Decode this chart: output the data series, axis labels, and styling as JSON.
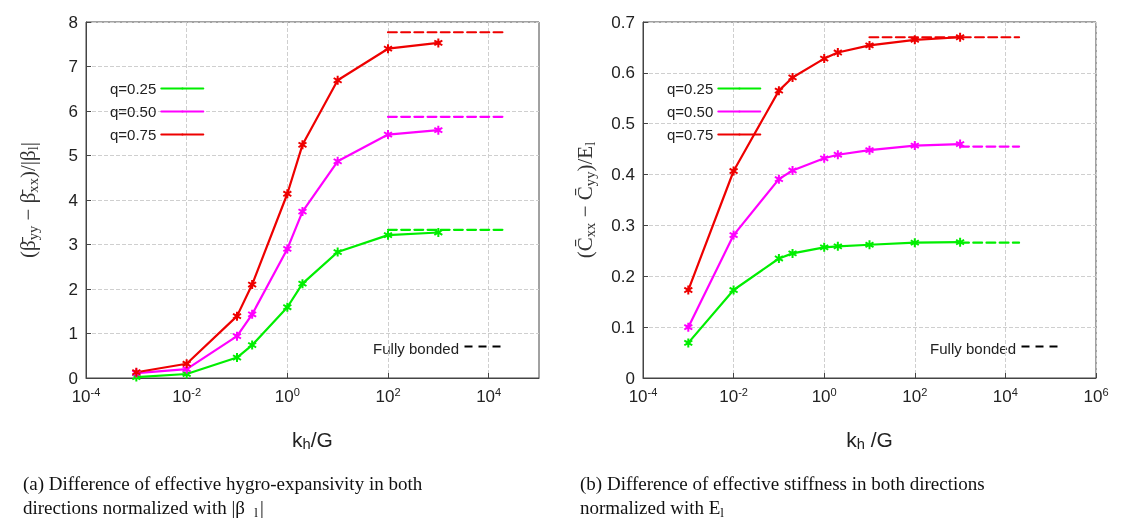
{
  "chart_data": [
    {
      "type": "line",
      "title": "(a) Difference of effective hygro-expansivity in both directions normalized with |β$_{l}$|",
      "xlabel": "k$_{h}$/G",
      "ylabel": "(β̄$_{yy}$ − β̄$_{xx}$)/|β$_{l}$|",
      "log": "x",
      "xlim": [
        0.0001,
        100000
      ],
      "xticks": [
        {
          "value": 0.0001,
          "label": "10$^{-4}$"
        },
        {
          "value": 0.01,
          "label": "10$^{-2}$"
        },
        {
          "value": 1,
          "label": "10$^{0}$"
        },
        {
          "value": 100,
          "label": "10$^{2}$"
        },
        {
          "value": 10000,
          "label": "10$^{4}$"
        }
      ],
      "ylim": [
        0,
        8
      ],
      "yticks": [
        0,
        1,
        2,
        3,
        4,
        5,
        6,
        7,
        8
      ],
      "grid": true,
      "legend": "top left",
      "marker": "star",
      "line_style": "solid",
      "series": [
        {
          "name": "q=0.25",
          "color": "#00ee00",
          "x": [
            0.001,
            0.01,
            0.1,
            0.2,
            1,
            2,
            10,
            100,
            1000
          ],
          "values": [
            0.02,
            0.09,
            0.46,
            0.74,
            1.59,
            2.12,
            2.83,
            3.21,
            3.27
          ]
        },
        {
          "name": "q=0.50",
          "color": "#ff00ff",
          "x": [
            0.001,
            0.01,
            0.1,
            0.2,
            1,
            2,
            10,
            100,
            1000
          ],
          "values": [
            0.11,
            0.2,
            0.94,
            1.43,
            2.9,
            3.74,
            4.87,
            5.47,
            5.57
          ]
        },
        {
          "name": "q=0.75",
          "color": "#ee0000",
          "x": [
            0.001,
            0.01,
            0.1,
            0.2,
            1,
            2,
            10,
            100,
            1000
          ],
          "values": [
            0.13,
            0.32,
            1.39,
            2.1,
            4.14,
            5.24,
            6.69,
            7.4,
            7.53
          ]
        },
        {
          "color": "#00ee00",
          "x": [
            100,
            20000
          ],
          "values": [
            3.33,
            3.33
          ],
          "line_style": "dashed",
          "marker": "none"
        },
        {
          "color": "#ff00ff",
          "x": [
            100,
            20000
          ],
          "values": [
            5.87,
            5.87
          ],
          "line_style": "dashed",
          "marker": "none"
        },
        {
          "color": "#ee0000",
          "x": [
            100,
            20000
          ],
          "values": [
            7.77,
            7.77
          ],
          "line_style": "dashed",
          "marker": "none"
        }
      ],
      "annotations": [
        "Fully bonded"
      ]
    },
    {
      "type": "line",
      "title": "(b) Difference of effective stiffness in both directions normalized with E$_{l}$",
      "xlabel": "k$_{h}$ /G",
      "ylabel": "(C̄$_{xx}$ − C̄$_{yy}$)/E$_{l}$",
      "log": "x",
      "xlim": [
        0.0001,
        1000000
      ],
      "xticks": [
        {
          "value": 0.0001,
          "label": "10$^{-4}$"
        },
        {
          "value": 0.01,
          "label": "10$^{-2}$"
        },
        {
          "value": 1,
          "label": "10$^{0}$"
        },
        {
          "value": 100,
          "label": "10$^{2}$"
        },
        {
          "value": 10000,
          "label": "10$^{4}$"
        },
        {
          "value": 1000000,
          "label": "10$^{6}$"
        }
      ],
      "ylim": [
        0,
        0.7
      ],
      "yticks": [
        0,
        0.1,
        0.2,
        0.3,
        0.4,
        0.5,
        0.6,
        0.7
      ],
      "grid": true,
      "legend": "top left",
      "marker": "star",
      "line_style": "solid",
      "series": [
        {
          "name": "q=0.25",
          "color": "#00ee00",
          "x": [
            0.001,
            0.01,
            0.1,
            0.2,
            1,
            2,
            10,
            100,
            1000
          ],
          "values": [
            0.069,
            0.173,
            0.235,
            0.245,
            0.257,
            0.259,
            0.262,
            0.266,
            0.267
          ]
        },
        {
          "name": "q=0.50",
          "color": "#ff00ff",
          "x": [
            0.001,
            0.01,
            0.1,
            0.2,
            1,
            2,
            10,
            100,
            1000
          ],
          "values": [
            0.1,
            0.281,
            0.391,
            0.408,
            0.432,
            0.439,
            0.448,
            0.457,
            0.46
          ]
        },
        {
          "name": "q=0.75",
          "color": "#ee0000",
          "x": [
            0.001,
            0.01,
            0.1,
            0.2,
            1,
            2,
            10,
            100,
            1000
          ],
          "values": [
            0.173,
            0.407,
            0.565,
            0.591,
            0.628,
            0.64,
            0.654,
            0.665,
            0.67
          ]
        },
        {
          "color": "#00ee00",
          "x": [
            1000,
            20000
          ],
          "values": [
            0.266,
            0.266
          ],
          "line_style": "dashed",
          "marker": "none"
        },
        {
          "color": "#ff00ff",
          "x": [
            1000,
            20000
          ],
          "values": [
            0.455,
            0.455
          ],
          "line_style": "dashed",
          "marker": "none"
        },
        {
          "color": "#ee0000",
          "x": [
            10,
            20000
          ],
          "values": [
            0.67,
            0.67
          ],
          "line_style": "dashed",
          "marker": "none"
        }
      ],
      "annotations": [
        "Fully bonded"
      ]
    }
  ]
}
